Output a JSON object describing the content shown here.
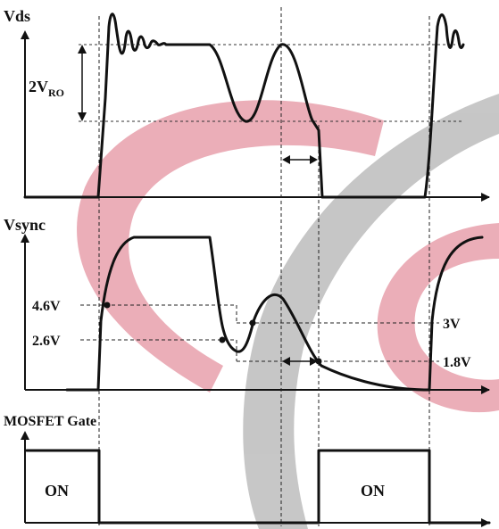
{
  "panels": {
    "vds": {
      "title": "Vds",
      "level_label_main": "2V",
      "level_label_sub": "RO"
    },
    "vsync": {
      "title": "Vsync",
      "left_labels": [
        "4.6V",
        "2.6V"
      ],
      "right_labels": [
        "3V",
        "1.8V"
      ]
    },
    "gate": {
      "title": "MOSFET Gate",
      "state_labels": [
        "ON",
        "ON"
      ]
    }
  },
  "colors": {
    "watermark_red": "#e8a0ac",
    "watermark_gray": "#bdbdbd",
    "trace": "#111111"
  }
}
